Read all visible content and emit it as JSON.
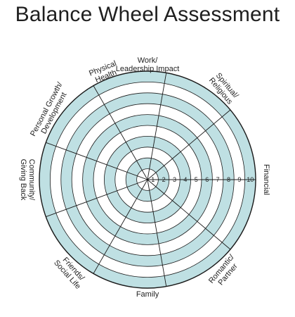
{
  "title": "Balance Wheel Assessment",
  "scale": [
    "1",
    "2",
    "3",
    "4",
    "5",
    "6",
    "7",
    "8",
    "9",
    "10"
  ],
  "segments": [
    {
      "lines": [
        "Work/",
        "Leadership Impact"
      ]
    },
    {
      "lines": [
        "Spiritual/",
        "Religious"
      ]
    },
    {
      "lines": [
        "Financial"
      ]
    },
    {
      "lines": [
        "Romantic/",
        "Partner"
      ]
    },
    {
      "lines": [
        "Family"
      ]
    },
    {
      "lines": [
        "Friends/",
        "Social Life"
      ]
    },
    {
      "lines": [
        "Community/",
        "Giving Back"
      ]
    },
    {
      "lines": [
        "Personal Growth/",
        "Development"
      ]
    },
    {
      "lines": [
        "Physical",
        "Health"
      ]
    }
  ],
  "colors": {
    "band": "#bfe0e3",
    "band_alt": "#ffffff",
    "stroke": "#1a1a1a"
  }
}
